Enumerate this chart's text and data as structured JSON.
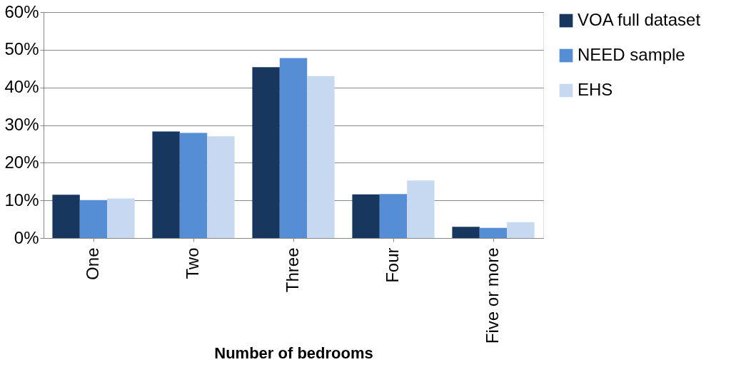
{
  "chart_data": {
    "type": "bar",
    "xlabel": "Number of bedrooms",
    "categories": [
      "One",
      "Two",
      "Three",
      "Four",
      "Five or more"
    ],
    "series": [
      {
        "name": "VOA full dataset",
        "color": "#17375e",
        "values": [
          11.5,
          28.3,
          45.4,
          11.6,
          3.0
        ]
      },
      {
        "name": "NEED sample",
        "color": "#558ed5",
        "values": [
          10.1,
          27.9,
          47.8,
          11.7,
          2.7
        ]
      },
      {
        "name": "EHS",
        "color": "#c6d9f1",
        "values": [
          10.5,
          27.0,
          43.0,
          15.3,
          4.2
        ]
      }
    ],
    "ylim": [
      0,
      60
    ],
    "yticks": [
      {
        "value": 0,
        "label": "0%"
      },
      {
        "value": 10,
        "label": "10%"
      },
      {
        "value": 20,
        "label": "20%"
      },
      {
        "value": 30,
        "label": "30%"
      },
      {
        "value": 40,
        "label": "40%"
      },
      {
        "value": 50,
        "label": "50%"
      },
      {
        "value": 60,
        "label": "60%"
      }
    ],
    "grid": "y",
    "legend": "right"
  }
}
